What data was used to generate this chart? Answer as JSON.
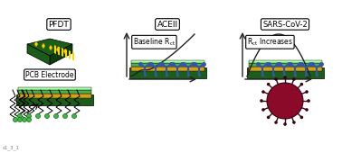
{
  "title": "",
  "bg_color": "#ffffff",
  "fig_width": 3.78,
  "fig_height": 1.7,
  "dpi": 100,
  "label_pfdt": "PFDT",
  "label_aceii": "ACEII",
  "label_sars": "SARS-CoV-2",
  "label_pcb": "PCB Electrode",
  "label_baseline": "Baseline R",
  "label_rct_inc": "R",
  "label_baseline_sub": "ct",
  "label_rct_sub": "ct",
  "label_increases": " Increases",
  "watermark": "s1_3_1",
  "dark_green": "#1a5e1a",
  "mid_green": "#2e8b2e",
  "light_green": "#4caf50",
  "yellow_gold": "#d4a017",
  "gold": "#ffd700",
  "blue_receptor": "#3355aa",
  "virus_red": "#8b0a2a",
  "virus_dark": "#6b0020",
  "graph_color": "#222222"
}
